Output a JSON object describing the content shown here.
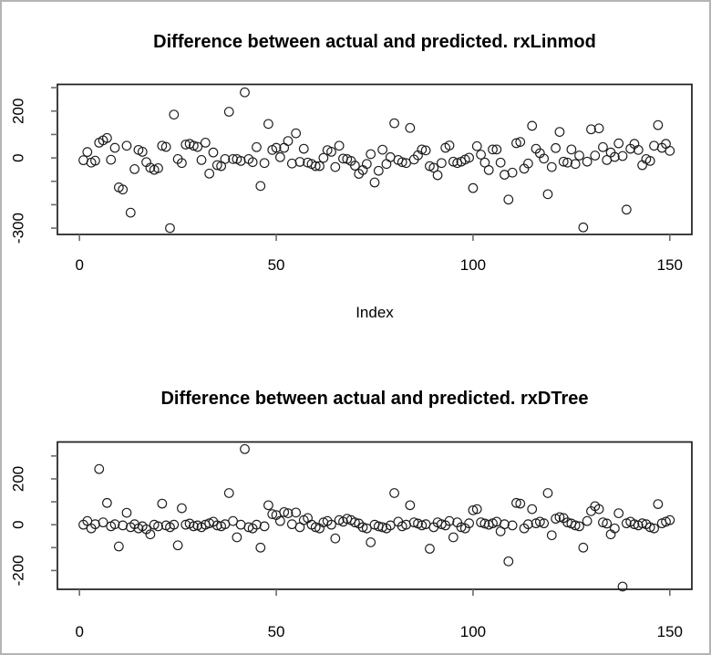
{
  "window": {
    "background": "#ffffff",
    "border_color": "#b4b4b4",
    "point_color": "#1c1c1c",
    "axis_color": "#1c1c1c",
    "tick_color": "#6b6b6b"
  },
  "chart_data": [
    {
      "type": "scatter",
      "title": "Difference between actual and predicted. rxLinmod",
      "xlabel": "Index",
      "ylabel": "",
      "point_style": "open-circle",
      "grid": false,
      "x": {
        "type": "index",
        "from": 1,
        "to": 150
      },
      "x_ticks": [
        0,
        50,
        100,
        150
      ],
      "y_ticks": [
        300,
        200,
        100,
        0,
        -100,
        -200,
        -300
      ],
      "y_tick_labels": [
        "",
        "200",
        "",
        "0",
        "",
        "",
        "-300"
      ],
      "xlim": [
        -5.6,
        155.6
      ],
      "ylim": [
        -327,
        314
      ],
      "values": [
        -10,
        25,
        -20,
        -12,
        65,
        75,
        85,
        -8,
        43,
        -126,
        -135,
        52,
        -234,
        -48,
        34,
        26,
        -18,
        -42,
        -51,
        -44,
        52,
        47,
        -300,
        185,
        -5,
        -22,
        57,
        60,
        52,
        47,
        -9,
        65,
        -67,
        23,
        -31,
        -35,
        -5,
        197,
        -5,
        -5,
        -13,
        280,
        -5,
        -18,
        46,
        -120,
        -22,
        145,
        34,
        43,
        3,
        43,
        72,
        -24,
        105,
        -17,
        39,
        -20,
        -26,
        -35,
        -35,
        0,
        33,
        26,
        -39,
        52,
        -3,
        -5,
        -13,
        -33,
        -68,
        -52,
        -26,
        16,
        -105,
        -55,
        35,
        -26,
        3,
        148,
        -9,
        -18,
        -22,
        128,
        -7,
        11,
        36,
        32,
        -35,
        -42,
        -74,
        -22,
        43,
        53,
        -16,
        -22,
        -16,
        -7,
        1,
        -129,
        50,
        14,
        -20,
        -52,
        36,
        36,
        -20,
        -72,
        -178,
        -63,
        63,
        68,
        -46,
        -24,
        137,
        39,
        20,
        -3,
        -155,
        -39,
        42,
        111,
        -16,
        -20,
        36,
        -26,
        10,
        -297,
        -16,
        122,
        10,
        126,
        46,
        -9,
        23,
        4,
        62,
        8,
        -221,
        39,
        60,
        34,
        -31,
        -5,
        -13,
        52,
        140,
        43,
        60,
        30
      ]
    },
    {
      "type": "scatter",
      "title": "Difference between actual and predicted. rxDTree",
      "xlabel": "",
      "ylabel": "",
      "point_style": "open-circle",
      "grid": false,
      "x": {
        "type": "index",
        "from": 1,
        "to": 150
      },
      "x_ticks": [
        0,
        50,
        100,
        150
      ],
      "y_ticks": [
        300,
        200,
        100,
        0,
        -100,
        -200
      ],
      "y_tick_labels": [
        "",
        "200",
        "",
        "0",
        "",
        "-200"
      ],
      "xlim": [
        -5.6,
        155.6
      ],
      "ylim": [
        -282,
        361
      ],
      "values": [
        0,
        16,
        -16,
        2,
        243,
        10,
        95,
        -7,
        2,
        -95,
        -3,
        52,
        -11,
        2,
        -16,
        -7,
        -20,
        -42,
        0,
        -7,
        92,
        -3,
        -11,
        0,
        -90,
        72,
        0,
        5,
        -7,
        -3,
        -11,
        0,
        6,
        13,
        -3,
        -7,
        2,
        138,
        16,
        -55,
        0,
        330,
        -11,
        -16,
        0,
        -100,
        -7,
        85,
        46,
        42,
        16,
        55,
        50,
        2,
        53,
        -11,
        20,
        29,
        0,
        -11,
        -16,
        10,
        16,
        0,
        -60,
        20,
        13,
        26,
        20,
        10,
        5,
        -11,
        -16,
        -77,
        0,
        -7,
        -11,
        -16,
        -3,
        138,
        13,
        -7,
        0,
        85,
        10,
        5,
        -3,
        2,
        -105,
        -11,
        10,
        2,
        -3,
        16,
        -55,
        10,
        -11,
        -16,
        6,
        63,
        68,
        10,
        5,
        0,
        6,
        13,
        -29,
        2,
        -160,
        -3,
        95,
        92,
        -16,
        2,
        68,
        6,
        13,
        6,
        138,
        -46,
        26,
        33,
        29,
        10,
        5,
        -3,
        -7,
        -100,
        16,
        59,
        81,
        68,
        10,
        5,
        -42,
        -16,
        50,
        -270,
        6,
        13,
        2,
        -3,
        6,
        2,
        -11,
        -16,
        90,
        6,
        13,
        20
      ]
    }
  ]
}
